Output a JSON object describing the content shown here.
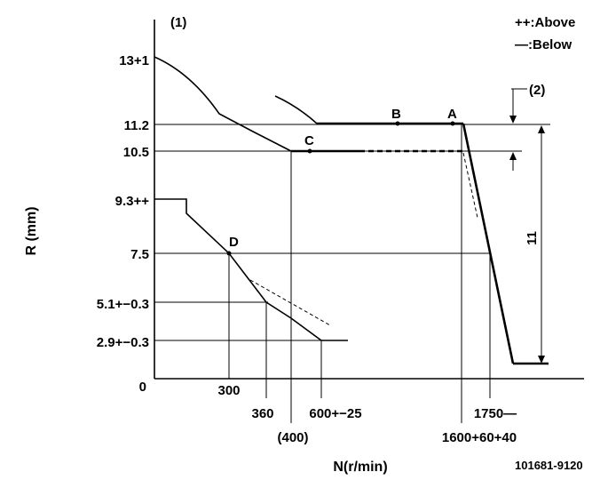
{
  "header": {
    "callout_1": "(1)",
    "legend_above": "++:Above",
    "legend_below": "—:Below"
  },
  "axes": {
    "y_title": "R (mm)",
    "x_title": "N(r/min)",
    "y_ticks": [
      "13+1",
      "11.2",
      "10.5",
      "9.3++",
      "7.5",
      "5.1+−0.3",
      "2.9+−0.3",
      "0"
    ],
    "x_ticks": [
      "300",
      "360",
      "(400)",
      "600+−25",
      "1600+60+40",
      "1750—"
    ]
  },
  "points": {
    "A": "A",
    "B": "B",
    "C": "C",
    "D": "D"
  },
  "annotations": {
    "callout_2": "(2)",
    "dimension_11": "11"
  },
  "footer": {
    "part_number": "101681-9120"
  }
}
